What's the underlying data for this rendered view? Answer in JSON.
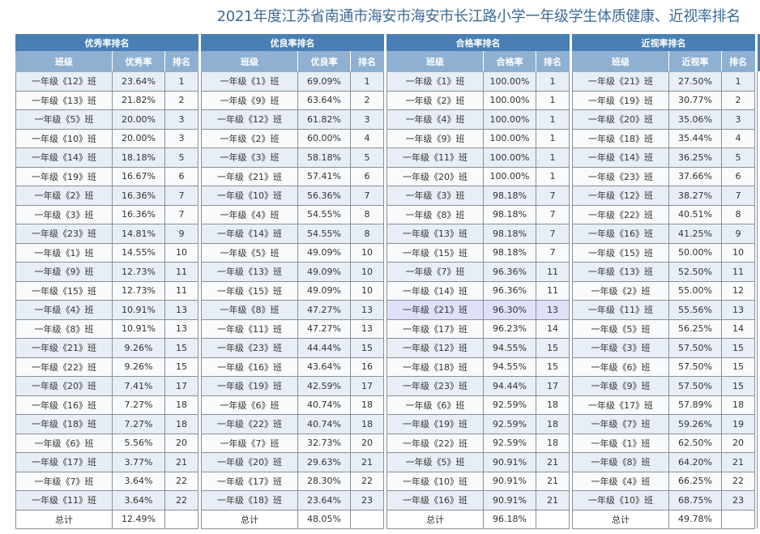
{
  "title": "2021年度江苏省南通市海安市海安市长江路小学一年级学生体质健康、近视率排名",
  "colors": {
    "group_header": "#4a7fb5",
    "col_header": "#8fb0d1",
    "row_odd": "#e8eef5",
    "row_even": "#f8fafc",
    "row_highlight": "#e0e0f8",
    "title": "#3e6a95"
  },
  "tables": [
    {
      "group": "优秀率排名",
      "headers": [
        "班级",
        "优秀率",
        "排名"
      ],
      "rows": [
        [
          "一年级《12》班",
          "23.64%",
          "1"
        ],
        [
          "一年级《13》班",
          "21.82%",
          "2"
        ],
        [
          "一年级《5》班",
          "20.00%",
          "3"
        ],
        [
          "一年级《10》班",
          "20.00%",
          "3"
        ],
        [
          "一年级《14》班",
          "18.18%",
          "5"
        ],
        [
          "一年级《19》班",
          "16.67%",
          "6"
        ],
        [
          "一年级《2》班",
          "16.36%",
          "7"
        ],
        [
          "一年级《3》班",
          "16.36%",
          "7"
        ],
        [
          "一年级《23》班",
          "14.81%",
          "9"
        ],
        [
          "一年级《1》班",
          "14.55%",
          "10"
        ],
        [
          "一年级《9》班",
          "12.73%",
          "11"
        ],
        [
          "一年级《15》班",
          "12.73%",
          "11"
        ],
        [
          "一年级《4》班",
          "10.91%",
          "13"
        ],
        [
          "一年级《8》班",
          "10.91%",
          "13"
        ],
        [
          "一年级《21》班",
          "9.26%",
          "15"
        ],
        [
          "一年级《22》班",
          "9.26%",
          "15"
        ],
        [
          "一年级《20》班",
          "7.41%",
          "17"
        ],
        [
          "一年级《16》班",
          "7.27%",
          "18"
        ],
        [
          "一年级《18》班",
          "7.27%",
          "18"
        ],
        [
          "一年级《6》班",
          "5.56%",
          "20"
        ],
        [
          "一年级《17》班",
          "3.77%",
          "21"
        ],
        [
          "一年级《7》班",
          "3.64%",
          "22"
        ],
        [
          "一年级《11》班",
          "3.64%",
          "22"
        ]
      ],
      "total": [
        "总计",
        "12.49%",
        ""
      ]
    },
    {
      "group": "优良率排名",
      "headers": [
        "班级",
        "优良率",
        "排名"
      ],
      "rows": [
        [
          "一年级《1》班",
          "69.09%",
          "1"
        ],
        [
          "一年级《9》班",
          "63.64%",
          "2"
        ],
        [
          "一年级《12》班",
          "61.82%",
          "3"
        ],
        [
          "一年级《2》班",
          "60.00%",
          "4"
        ],
        [
          "一年级《3》班",
          "58.18%",
          "5"
        ],
        [
          "一年级《21》班",
          "57.41%",
          "6"
        ],
        [
          "一年级《10》班",
          "56.36%",
          "7"
        ],
        [
          "一年级《4》班",
          "54.55%",
          "8"
        ],
        [
          "一年级《14》班",
          "54.55%",
          "8"
        ],
        [
          "一年级《5》班",
          "49.09%",
          "10"
        ],
        [
          "一年级《13》班",
          "49.09%",
          "10"
        ],
        [
          "一年级《15》班",
          "49.09%",
          "10"
        ],
        [
          "一年级《8》班",
          "47.27%",
          "13"
        ],
        [
          "一年级《11》班",
          "47.27%",
          "13"
        ],
        [
          "一年级《23》班",
          "44.44%",
          "15"
        ],
        [
          "一年级《16》班",
          "43.64%",
          "16"
        ],
        [
          "一年级《19》班",
          "42.59%",
          "17"
        ],
        [
          "一年级《6》班",
          "40.74%",
          "18"
        ],
        [
          "一年级《22》班",
          "40.74%",
          "18"
        ],
        [
          "一年级《7》班",
          "32.73%",
          "20"
        ],
        [
          "一年级《20》班",
          "29.63%",
          "21"
        ],
        [
          "一年级《17》班",
          "28.30%",
          "22"
        ],
        [
          "一年级《18》班",
          "23.64%",
          "23"
        ]
      ],
      "total": [
        "总计",
        "48.05%",
        ""
      ]
    },
    {
      "group": "合格率排名",
      "headers": [
        "班级",
        "合格率",
        "排名"
      ],
      "rows": [
        [
          "一年级《1》班",
          "100.00%",
          "1"
        ],
        [
          "一年级《2》班",
          "100.00%",
          "1"
        ],
        [
          "一年级《4》班",
          "100.00%",
          "1"
        ],
        [
          "一年级《9》班",
          "100.00%",
          "1"
        ],
        [
          "一年级《11》班",
          "100.00%",
          "1"
        ],
        [
          "一年级《20》班",
          "100.00%",
          "1"
        ],
        [
          "一年级《3》班",
          "98.18%",
          "7"
        ],
        [
          "一年级《8》班",
          "98.18%",
          "7"
        ],
        [
          "一年级《13》班",
          "98.18%",
          "7"
        ],
        [
          "一年级《15》班",
          "98.18%",
          "7"
        ],
        [
          "一年级《7》班",
          "96.36%",
          "11"
        ],
        [
          "一年级《14》班",
          "96.36%",
          "11"
        ],
        [
          "一年级《21》班",
          "96.30%",
          "13"
        ],
        [
          "一年级《17》班",
          "96.23%",
          "14"
        ],
        [
          "一年级《12》班",
          "94.55%",
          "15"
        ],
        [
          "一年级《18》班",
          "94.55%",
          "15"
        ],
        [
          "一年级《23》班",
          "94.44%",
          "17"
        ],
        [
          "一年级《6》班",
          "92.59%",
          "18"
        ],
        [
          "一年级《19》班",
          "92.59%",
          "18"
        ],
        [
          "一年级《22》班",
          "92.59%",
          "18"
        ],
        [
          "一年级《5》班",
          "90.91%",
          "21"
        ],
        [
          "一年级《10》班",
          "90.91%",
          "21"
        ],
        [
          "一年级《16》班",
          "90.91%",
          "21"
        ]
      ],
      "highlight_row": 12,
      "total": [
        "总计",
        "96.18%",
        ""
      ]
    },
    {
      "group": "近视率排名",
      "headers": [
        "班级",
        "近视率",
        "排名"
      ],
      "rows": [
        [
          "一年级《21》班",
          "27.50%",
          "1"
        ],
        [
          "一年级《19》班",
          "30.77%",
          "2"
        ],
        [
          "一年级《20》班",
          "35.06%",
          "3"
        ],
        [
          "一年级《18》班",
          "35.44%",
          "4"
        ],
        [
          "一年级《14》班",
          "36.25%",
          "5"
        ],
        [
          "一年级《23》班",
          "37.66%",
          "6"
        ],
        [
          "一年级《12》班",
          "38.27%",
          "7"
        ],
        [
          "一年级《22》班",
          "40.51%",
          "8"
        ],
        [
          "一年级《16》班",
          "41.25%",
          "9"
        ],
        [
          "一年级《15》班",
          "50.00%",
          "10"
        ],
        [
          "一年级《13》班",
          "52.50%",
          "11"
        ],
        [
          "一年级《2》班",
          "55.00%",
          "12"
        ],
        [
          "一年级《11》班",
          "55.56%",
          "13"
        ],
        [
          "一年级《5》班",
          "56.25%",
          "14"
        ],
        [
          "一年级《3》班",
          "57.50%",
          "15"
        ],
        [
          "一年级《6》班",
          "57.50%",
          "15"
        ],
        [
          "一年级《9》班",
          "57.50%",
          "15"
        ],
        [
          "一年级《17》班",
          "57.89%",
          "18"
        ],
        [
          "一年级《7》班",
          "59.26%",
          "19"
        ],
        [
          "一年级《1》班",
          "62.50%",
          "20"
        ],
        [
          "一年级《8》班",
          "64.20%",
          "21"
        ],
        [
          "一年级《4》班",
          "66.25%",
          "22"
        ],
        [
          "一年级《10》班",
          "68.75%",
          "23"
        ]
      ],
      "total": [
        "总计",
        "49.78%",
        ""
      ]
    }
  ]
}
